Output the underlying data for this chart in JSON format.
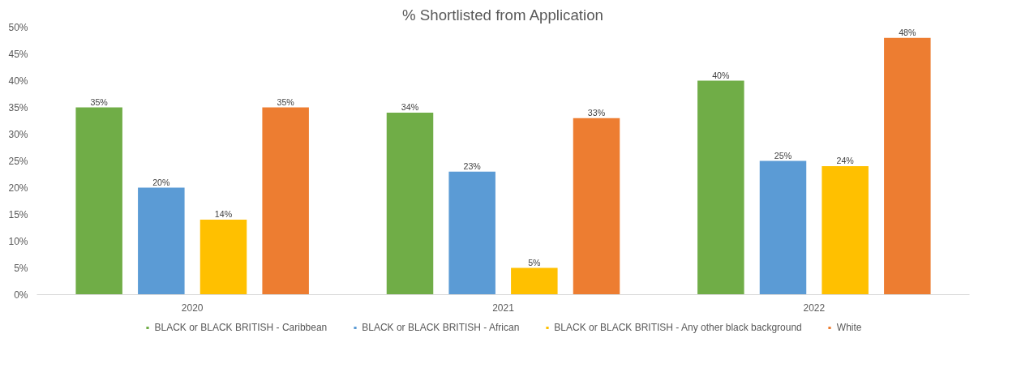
{
  "chart_data": {
    "type": "bar",
    "title": "% Shortlisted from Application",
    "categories": [
      "2020",
      "2021",
      "2022"
    ],
    "series": [
      {
        "name": "BLACK or BLACK BRITISH - Caribbean",
        "color": "#70ad47",
        "values": [
          35,
          34,
          40
        ],
        "value_labels": [
          "35%",
          "34%",
          "40%"
        ]
      },
      {
        "name": "BLACK or BLACK BRITISH - African",
        "color": "#5b9bd5",
        "values": [
          20,
          23,
          25
        ],
        "value_labels": [
          "20%",
          "23%",
          "25%"
        ]
      },
      {
        "name": "BLACK or BLACK BRITISH - Any other black background",
        "color": "#ffc000",
        "values": [
          14,
          5,
          24
        ],
        "value_labels": [
          "14%",
          "5%",
          "24%"
        ]
      },
      {
        "name": "White",
        "color": "#ed7d31",
        "values": [
          35,
          33,
          48
        ],
        "value_labels": [
          "35%",
          "33%",
          "48%"
        ]
      }
    ],
    "ylim": [
      0,
      50
    ],
    "yticks": [
      {
        "value": 0,
        "label": "0%"
      },
      {
        "value": 5,
        "label": "5%"
      },
      {
        "value": 10,
        "label": "10%"
      },
      {
        "value": 15,
        "label": "15%"
      },
      {
        "value": 20,
        "label": "20%"
      },
      {
        "value": 25,
        "label": "25%"
      },
      {
        "value": 30,
        "label": "30%"
      },
      {
        "value": 35,
        "label": "35%"
      },
      {
        "value": 40,
        "label": "40%"
      },
      {
        "value": 45,
        "label": "45%"
      },
      {
        "value": 50,
        "label": "50%"
      }
    ],
    "grid": false,
    "legend": "bottom"
  }
}
